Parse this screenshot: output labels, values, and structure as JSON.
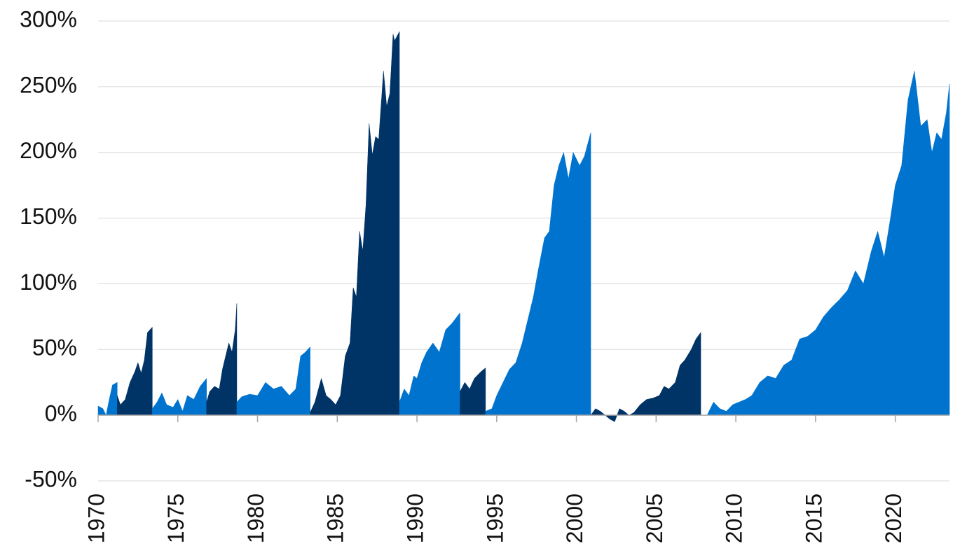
{
  "chart_data": {
    "type": "area",
    "xlim": [
      1970,
      2023.4
    ],
    "xticks": [
      1970,
      1975,
      1980,
      1985,
      1990,
      1995,
      2000,
      2005,
      2010,
      2015,
      2020
    ],
    "ylim": [
      -50,
      300
    ],
    "yticks": [
      {
        "value": -50,
        "label": "-50%"
      },
      {
        "value": 0,
        "label": "0%"
      },
      {
        "value": 50,
        "label": "50%"
      },
      {
        "value": 100,
        "label": "100%"
      },
      {
        "value": 150,
        "label": "150%"
      },
      {
        "value": 200,
        "label": "200%"
      },
      {
        "value": 250,
        "label": "250%"
      },
      {
        "value": 300,
        "label": "300%"
      }
    ],
    "grid": true,
    "series": [
      {
        "color": "#0073cf",
        "x": [
          1970,
          1970.3,
          1970.5,
          1970.7,
          1970.9,
          1971.2
        ],
        "values": [
          7,
          5,
          0,
          12,
          23,
          25
        ]
      },
      {
        "color": "#003366",
        "x": [
          1971.2,
          1971.4,
          1971.7,
          1972,
          1972.3,
          1972.5,
          1972.7,
          1972.9,
          1973.1,
          1973.4
        ],
        "values": [
          15,
          8,
          12,
          25,
          33,
          40,
          32,
          42,
          63,
          67
        ]
      },
      {
        "color": "#0073cf",
        "x": [
          1973.4,
          1973.7,
          1974,
          1974.3,
          1974.7,
          1975,
          1975.3,
          1975.6,
          1976,
          1976.4,
          1976.8
        ],
        "values": [
          5,
          10,
          17,
          8,
          6,
          12,
          3,
          15,
          12,
          22,
          28
        ]
      },
      {
        "color": "#003366",
        "x": [
          1976.8,
          1977,
          1977.3,
          1977.6,
          1977.8,
          1978,
          1978.2,
          1978.4,
          1978.6,
          1978.7
        ],
        "values": [
          10,
          18,
          22,
          20,
          35,
          45,
          55,
          48,
          65,
          85
        ]
      },
      {
        "color": "#0073cf",
        "x": [
          1978.7,
          1979,
          1979.5,
          1980,
          1980.5,
          1981,
          1981.5,
          1982,
          1982.4,
          1982.7,
          1983,
          1983.3
        ],
        "values": [
          10,
          14,
          16,
          15,
          25,
          20,
          22,
          15,
          20,
          45,
          48,
          52
        ]
      },
      {
        "color": "#003366",
        "x": [
          1983.3,
          1983.6,
          1984,
          1984.3,
          1984.6,
          1984.9,
          1985.2,
          1985.5,
          1985.8,
          1986,
          1986.2,
          1986.4,
          1986.6,
          1986.8,
          1987,
          1987.2,
          1987.4,
          1987.6,
          1987.9,
          1988.1,
          1988.3,
          1988.5,
          1988.6,
          1988.9
        ],
        "values": [
          2,
          10,
          28,
          15,
          12,
          8,
          15,
          45,
          55,
          97,
          90,
          140,
          125,
          160,
          222,
          198,
          212,
          210,
          262,
          235,
          245,
          290,
          285,
          292
        ]
      },
      {
        "color": "#0073cf",
        "x": [
          1988.9,
          1989.2,
          1989.5,
          1989.8,
          1990,
          1990.3,
          1990.6,
          1991,
          1991.4,
          1991.8,
          1992.2,
          1992.7
        ],
        "values": [
          10,
          20,
          15,
          30,
          28,
          40,
          48,
          55,
          48,
          65,
          70,
          78
        ]
      },
      {
        "color": "#003366",
        "x": [
          1992.7,
          1993,
          1993.3,
          1993.6,
          1994,
          1994.3
        ],
        "values": [
          18,
          25,
          20,
          28,
          33,
          36
        ]
      },
      {
        "color": "#0073cf",
        "x": [
          1994.3,
          1994.7,
          1995,
          1995.4,
          1995.8,
          1996.2,
          1996.6,
          1997,
          1997.3,
          1997.6,
          1998,
          1998.3,
          1998.6,
          1998.9,
          1999.2,
          1999.5,
          1999.8,
          2000.2,
          2000.5,
          2000.9
        ],
        "values": [
          3,
          5,
          15,
          25,
          35,
          40,
          55,
          75,
          90,
          110,
          135,
          140,
          175,
          190,
          200,
          180,
          200,
          190,
          197,
          215
        ]
      },
      {
        "color": "#003366",
        "x": [
          2000.9,
          2001.2,
          2001.5,
          2001.8,
          2002.1,
          2002.4,
          2002.7,
          2003,
          2003.3,
          2003.6,
          2004,
          2004.4,
          2004.8,
          2005.2,
          2005.5,
          2005.8,
          2006.2,
          2006.5,
          2006.8,
          2007.2,
          2007.5,
          2007.8
        ],
        "values": [
          0,
          5,
          3,
          0,
          -3,
          -5,
          5,
          3,
          0,
          2,
          8,
          12,
          13,
          15,
          22,
          20,
          25,
          38,
          42,
          50,
          58,
          63
        ]
      },
      {
        "color": "#0073cf",
        "x": [
          2007.8,
          2008.2,
          2008.6,
          2009,
          2009.4,
          2009.8,
          2010.2,
          2010.6,
          2011,
          2011.5,
          2012,
          2012.5,
          2013,
          2013.5,
          2014,
          2014.5,
          2015,
          2015.5,
          2016,
          2016.5,
          2017,
          2017.5,
          2018,
          2018.5,
          2018.9,
          2019.3,
          2019.7,
          2020,
          2020.4,
          2020.8,
          2021.2,
          2021.6,
          2022,
          2022.3,
          2022.6,
          2022.9,
          2023.2,
          2023.4
        ],
        "values": [
          0,
          0,
          10,
          5,
          3,
          8,
          10,
          12,
          15,
          25,
          30,
          28,
          38,
          42,
          58,
          60,
          65,
          75,
          82,
          88,
          95,
          110,
          100,
          125,
          140,
          120,
          150,
          175,
          190,
          240,
          262,
          220,
          225,
          200,
          215,
          210,
          230,
          252
        ]
      }
    ]
  }
}
